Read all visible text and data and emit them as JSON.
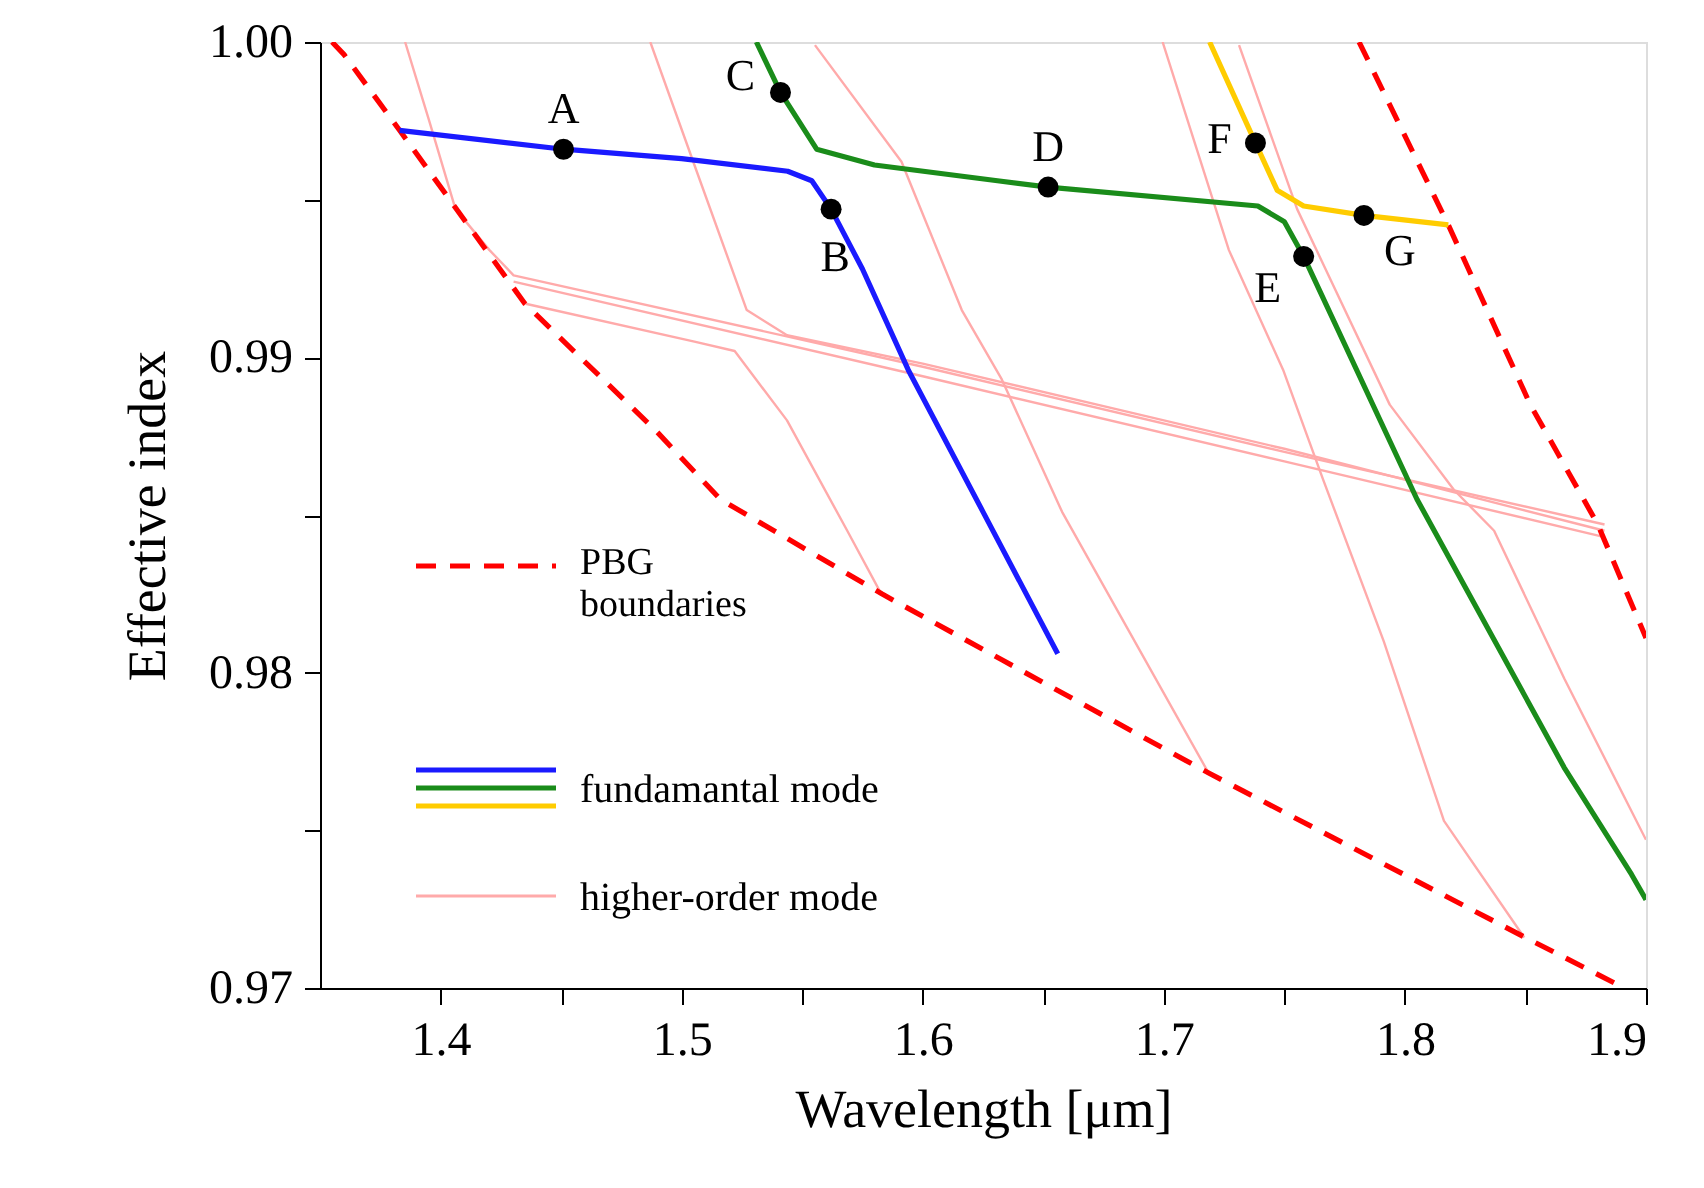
{
  "chart_data": {
    "type": "line",
    "xlabel": "Wavelength [μm]",
    "ylabel": "Effective index",
    "xlim": [
      1.35,
      1.9
    ],
    "ylim": [
      0.97,
      1.0
    ],
    "xticks": [
      1.4,
      {
        "value": 1.45,
        "label": null
      },
      1.5,
      {
        "value": 1.55,
        "label": null
      },
      1.6,
      {
        "value": 1.65,
        "label": null
      },
      1.7,
      {
        "value": 1.75,
        "label": null
      },
      1.8,
      {
        "value": 1.85,
        "label": null
      },
      1.9
    ],
    "yticks": [
      0.97,
      {
        "value": 0.975,
        "label": null
      },
      0.98,
      {
        "value": 0.985,
        "label": null
      },
      0.99,
      {
        "value": 0.995,
        "label": null
      },
      {
        "value": 1.0,
        "label": "1.00"
      }
    ],
    "grid": false,
    "legend": "bottom left",
    "marker": "none",
    "series": [
      {
        "name": "higher-order mode",
        "color": "#ffaaaa",
        "x": [
          1.3853,
          1.3953,
          1.4062,
          1.4203,
          1.4303,
          1.6,
          1.75,
          1.8828
        ],
        "values": [
          1.0,
          0.9975,
          0.9947,
          0.9934,
          0.9926,
          0.9897,
          0.987,
          0.9847
        ]
      },
      {
        "color": "#ffaaaa",
        "x": [
          1.4303,
          1.6,
          1.75,
          1.8828
        ],
        "values": [
          0.9924,
          0.9894,
          0.9867,
          0.9843
        ]
      },
      {
        "color": "#ffaaaa",
        "x": [
          1.4353,
          1.5053,
          1.522,
          1.5437,
          1.5687,
          1.5828
        ],
        "values": [
          0.9917,
          0.9905,
          0.9902,
          0.988,
          0.9845,
          0.9825
        ]
      },
      {
        "color": "#ffaaaa",
        "x": [
          1.487,
          1.5053,
          1.527,
          1.5437,
          1.6,
          1.75,
          1.8828
        ],
        "values": [
          1.0,
          0.9961,
          0.9915,
          0.9907,
          0.9898,
          0.9871,
          0.9845
        ]
      },
      {
        "color": "#ffaaaa",
        "x": [
          1.5553,
          1.5912,
          1.6162,
          1.6328,
          1.6578,
          1.7187
        ],
        "values": [
          0.9999,
          0.9962,
          0.9915,
          0.9893,
          0.9851,
          0.9768
        ]
      },
      {
        "color": "#ffaaaa",
        "x": [
          1.6995,
          1.727,
          1.7495,
          1.7662,
          1.7912,
          1.8162,
          1.8495
        ],
        "values": [
          1.0,
          0.9934,
          0.9896,
          0.9861,
          0.981,
          0.9753,
          0.9716
        ]
      },
      {
        "color": "#ffaaaa",
        "x": [
          1.7312,
          1.7553,
          1.7937,
          1.8203,
          1.837,
          1.8662,
          1.9
        ],
        "values": [
          0.9999,
          0.9947,
          0.9885,
          0.9858,
          0.9845,
          0.9798,
          0.9747
        ]
      },
      {
        "name": "PBG boundaries",
        "color": "#ff0000",
        "line_style": "dashed",
        "x": [
          1.355,
          1.36,
          1.383,
          1.435,
          1.489,
          1.516,
          1.583,
          1.633,
          1.719,
          1.85,
          1.891
        ],
        "values": [
          1.0,
          0.9996,
          0.9972,
          0.9917,
          0.9877,
          0.9855,
          0.9825,
          0.9804,
          0.9768,
          0.9716,
          0.97
        ]
      },
      {
        "color": "#ff0000",
        "line_style": "dashed",
        "x": [
          1.781,
          1.818,
          1.852,
          1.88,
          1.9
        ],
        "values": [
          1.0,
          0.9942,
          0.9885,
          0.9847,
          0.9811
        ]
      },
      {
        "name": "fundamantal mode",
        "color": "#1a1aff",
        "x": [
          1.383,
          1.451,
          1.5,
          1.544,
          1.554,
          1.562,
          1.575,
          1.594,
          1.625,
          1.656
        ],
        "values": [
          0.9972,
          0.9966,
          0.9963,
          0.9959,
          0.9956,
          0.9947,
          0.9928,
          0.9896,
          0.9851,
          0.9806
        ]
      },
      {
        "color": "#1a8c1a",
        "x": [
          1.531,
          1.541,
          1.556,
          1.58,
          1.631,
          1.652,
          1.739,
          1.75,
          1.758,
          1.805,
          1.866,
          1.894,
          1.9
        ],
        "values": [
          1.0,
          0.9984,
          0.9966,
          0.9961,
          0.9956,
          0.9954,
          0.9948,
          0.9943,
          0.9932,
          0.9855,
          0.977,
          0.9736,
          0.9728
        ]
      },
      {
        "color": "#ffcc00",
        "x": [
          1.719,
          1.738,
          1.747,
          1.758,
          1.783,
          1.818
        ],
        "values": [
          1.0,
          0.9968,
          0.9953,
          0.9948,
          0.9945,
          0.9942
        ]
      },
      {
        "type": "scatter",
        "marker": "circle",
        "color": "#000000",
        "x": [
          1.451,
          1.562,
          1.541,
          1.652,
          1.758,
          1.738,
          1.783
        ],
        "values": [
          0.9966,
          0.9947,
          0.9984,
          0.9954,
          0.9932,
          0.9968,
          0.9945
        ]
      }
    ],
    "annotations": [
      {
        "text": "A",
        "x": 1.451,
        "y": 0.9966
      },
      {
        "text": "B",
        "x": 1.562,
        "y": 0.9947
      },
      {
        "text": "C",
        "x": 1.541,
        "y": 0.9984
      },
      {
        "text": "D",
        "x": 1.652,
        "y": 0.9954
      },
      {
        "text": "E",
        "x": 1.758,
        "y": 0.9932
      },
      {
        "text": "F",
        "x": 1.738,
        "y": 0.9968
      },
      {
        "text": "G",
        "x": 1.783,
        "y": 0.9945
      }
    ]
  }
}
